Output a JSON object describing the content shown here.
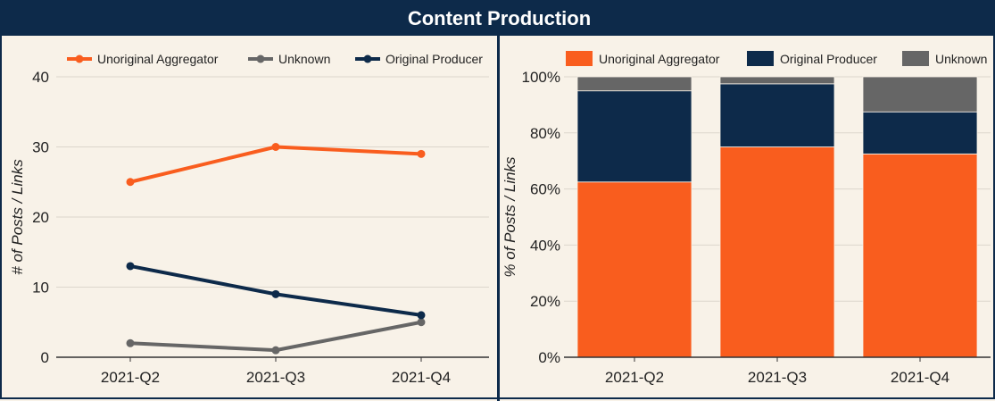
{
  "title": "Content Production",
  "colors": {
    "aggregator": "#f95d1e",
    "producer": "#0d2a4a",
    "unknown": "#666666",
    "grid": "#dcd6cc",
    "axis": "#333333",
    "text": "#222222"
  },
  "chart_data": [
    {
      "type": "line",
      "categories": [
        "2021-Q2",
        "2021-Q3",
        "2021-Q4"
      ],
      "series": [
        {
          "name": "Unoriginal Aggregator",
          "values": [
            25,
            30,
            29
          ],
          "color_key": "aggregator"
        },
        {
          "name": "Unknown",
          "values": [
            2,
            1,
            5
          ],
          "color_key": "unknown"
        },
        {
          "name": "Original Producer",
          "values": [
            13,
            9,
            6
          ],
          "color_key": "producer"
        }
      ],
      "ylabel": "# of Posts / Links",
      "ylim": [
        0,
        40
      ],
      "yticks": [
        0,
        10,
        20,
        30,
        40
      ],
      "legend": "top",
      "grid": true
    },
    {
      "type": "bar",
      "stacked": true,
      "categories": [
        "2021-Q2",
        "2021-Q3",
        "2021-Q4"
      ],
      "series": [
        {
          "name": "Unoriginal Aggregator",
          "values": [
            62.5,
            75,
            72.5
          ],
          "color_key": "aggregator"
        },
        {
          "name": "Original Producer",
          "values": [
            32.5,
            22.5,
            15
          ],
          "color_key": "producer"
        },
        {
          "name": "Unknown",
          "values": [
            5,
            2.5,
            12.5
          ],
          "color_key": "unknown"
        }
      ],
      "ylabel": "% of Posts / Links",
      "ylim": [
        0,
        100
      ],
      "yticks": [
        "0%",
        "20%",
        "40%",
        "60%",
        "80%",
        "100%"
      ],
      "legend": "top",
      "grid": true
    }
  ]
}
